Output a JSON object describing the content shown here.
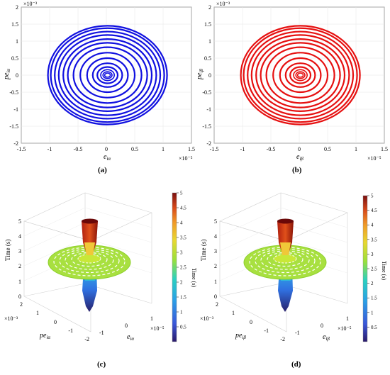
{
  "figure": {
    "panels": [
      "(a)",
      "(b)",
      "(c)",
      "(d)"
    ]
  },
  "colors": {
    "blue": "#1010e0",
    "red": "#e61010",
    "grid": "#e6e6e6",
    "axis": "#000000"
  },
  "chart_data": [
    {
      "type": "line",
      "panel": "(a)",
      "xlabel": "e_iα",
      "ylabel": "pe_iα",
      "x_exponent": "×10⁻⁵",
      "y_exponent": "×10⁻³",
      "xlim": [
        -1.5,
        1.5
      ],
      "ylim": [
        -2,
        2
      ],
      "xticks": [
        "-1.5",
        "-1",
        "-0.5",
        "0",
        "0.5",
        "1",
        "1.5"
      ],
      "yticks": [
        "2",
        "1.5",
        "1",
        "0.5",
        "0",
        "-0.5",
        "-1",
        "-1.5",
        "-2"
      ],
      "series": [
        {
          "color": "blue",
          "orbits": [
            [
              1.05,
              1.45
            ],
            [
              1.0,
              1.38
            ],
            [
              0.93,
              1.28
            ],
            [
              0.86,
              1.18
            ],
            [
              0.78,
              1.06
            ],
            [
              0.7,
              0.95
            ],
            [
              0.6,
              0.82
            ],
            [
              0.48,
              0.66
            ],
            [
              0.36,
              0.5
            ],
            [
              0.26,
              0.35
            ],
            [
              0.18,
              0.24
            ],
            [
              0.12,
              0.16
            ],
            [
              0.08,
              0.1
            ],
            [
              0.05,
              0.06
            ]
          ]
        }
      ]
    },
    {
      "type": "line",
      "panel": "(b)",
      "xlabel": "e_iβ",
      "ylabel": "pe_iβ",
      "x_exponent": "×10⁻⁵",
      "y_exponent": "×10⁻³",
      "xlim": [
        -1.5,
        1.5
      ],
      "ylim": [
        -2,
        2
      ],
      "xticks": [
        "-1.5",
        "-1",
        "-0.5",
        "0",
        "0.5",
        "1",
        "1.5"
      ],
      "yticks": [
        "2",
        "1.5",
        "1",
        "0.5",
        "0",
        "-0.5",
        "-1",
        "-1.5",
        "-2"
      ],
      "series": [
        {
          "color": "red",
          "orbits": [
            [
              1.05,
              1.45
            ],
            [
              1.0,
              1.38
            ],
            [
              0.93,
              1.28
            ],
            [
              0.86,
              1.18
            ],
            [
              0.78,
              1.06
            ],
            [
              0.7,
              0.95
            ],
            [
              0.6,
              0.82
            ],
            [
              0.48,
              0.66
            ],
            [
              0.36,
              0.5
            ],
            [
              0.26,
              0.35
            ],
            [
              0.18,
              0.24
            ],
            [
              0.12,
              0.16
            ],
            [
              0.08,
              0.1
            ],
            [
              0.05,
              0.06
            ]
          ]
        }
      ]
    },
    {
      "type": "scatter",
      "panel": "(c)",
      "zlabel": "Time (s)",
      "xlabel": "e_iα",
      "ylabel": "pe_iα",
      "zticks": [
        "0",
        "1",
        "2",
        "3",
        "4",
        "5"
      ],
      "x_ticks": [
        "-1",
        "0",
        "1"
      ],
      "y_ticks": [
        "2",
        "1",
        "0",
        "-1",
        "-2"
      ],
      "x_exponent": "×10⁻⁵",
      "y_exponent": "×10⁻³",
      "colorbar": {
        "label": "Time (s)",
        "min": 0,
        "max": 5,
        "ticks": [
          "5",
          "4.5",
          "4",
          "3.5",
          "3",
          "2.5",
          "2",
          "1.5",
          "1",
          "0.5"
        ]
      }
    },
    {
      "type": "scatter",
      "panel": "(d)",
      "zlabel": "Time (s)",
      "xlabel": "e_iβ",
      "ylabel": "pe_iβ",
      "zticks": [
        "0",
        "1",
        "2",
        "3",
        "4",
        "5"
      ],
      "x_ticks": [
        "-1",
        "0",
        "1"
      ],
      "y_ticks": [
        "2",
        "1",
        "0",
        "-1",
        "-2"
      ],
      "x_exponent": "×10⁻⁵",
      "y_exponent": "×10⁻³",
      "colorbar": {
        "label": "Time (s)",
        "min": 0,
        "max": 5,
        "ticks": [
          "5",
          "4.5",
          "4",
          "3.5",
          "3",
          "2.5",
          "2",
          "1.5",
          "1",
          "0.5"
        ]
      }
    }
  ]
}
